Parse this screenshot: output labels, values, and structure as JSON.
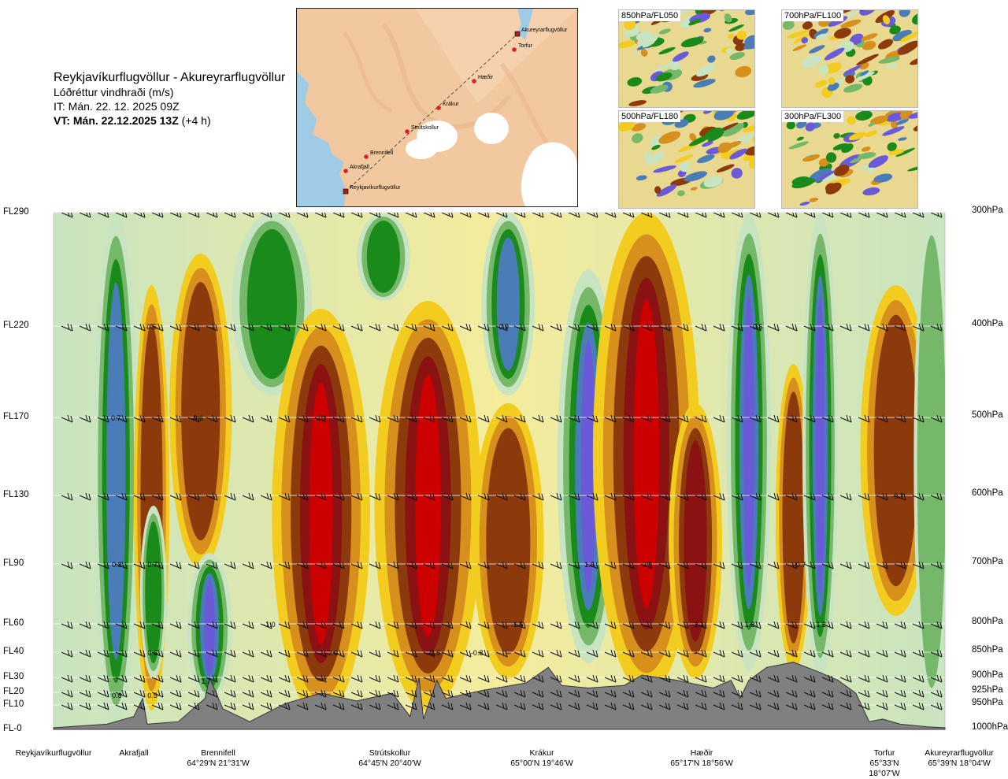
{
  "title": {
    "route": "Reykjavíkurflugvöllur - Akureyrarflugvöllur",
    "variable": "Lóðréttur vindhraði (m/s)",
    "init_time": "IT: Mán. 22. 12. 2025 09Z",
    "valid_time": "VT: Mán. 22.12.2025 13Z",
    "lead": "(+4 h)"
  },
  "map": {
    "stations": [
      "Akureyrarflugvöllur",
      "Torfur",
      "Hæðir",
      "Krákur",
      "Strútskollur",
      "Brennifell",
      "Akrafjall",
      "Reykjavíkurflugvöllur"
    ]
  },
  "thumbnails": [
    "850hPa/FL050",
    "700hPa/FL100",
    "500hPa/FL180",
    "300hPa/FL300"
  ],
  "chart_data": {
    "type": "heatmap",
    "title": "Lóðréttur vindhraði (m/s)",
    "left_axis_levels": [
      "FL290",
      "FL220",
      "FL170",
      "FL130",
      "FL90",
      "FL60",
      "FL40",
      "FL30",
      "FL20",
      "FL10",
      "FL-0"
    ],
    "right_axis_levels": [
      "300hPa",
      "400hPa",
      "500hPa",
      "600hPa",
      "700hPa",
      "800hPa",
      "850hPa",
      "900hPa",
      "925hPa",
      "950hPa",
      "1000hPa"
    ],
    "pressure_hpa": [
      300,
      400,
      500,
      600,
      700,
      800,
      850,
      900,
      925,
      950,
      1000
    ],
    "locations": [
      {
        "name": "Reykjavíkurflugvöllur",
        "coord": ""
      },
      {
        "name": "Akrafjall",
        "coord": ""
      },
      {
        "name": "Brennifell",
        "coord": "64°29'N 21°31'W"
      },
      {
        "name": "Strútskollur",
        "coord": "64°45'N 20°40'W"
      },
      {
        "name": "Krákur",
        "coord": "65°00'N 19°46'W"
      },
      {
        "name": "Hæðir",
        "coord": "65°17'N 18°56'W"
      },
      {
        "name": "Torfur",
        "coord": "65°33'N 18°07'W"
      },
      {
        "name": "Akureyrarflugvöllur",
        "coord": "65°39'N 18°04'W"
      }
    ],
    "contour_labels": [
      {
        "text": "0.5",
        "x": 0.11,
        "level_hpa": 400
      },
      {
        "text": "0.9",
        "x": 0.505,
        "level_hpa": 400
      },
      {
        "text": "0.5",
        "x": 0.79,
        "level_hpa": 400
      },
      {
        "text": "0.7",
        "x": 0.07,
        "level_hpa": 500
      },
      {
        "text": "-0.6",
        "x": 0.161,
        "level_hpa": 500
      },
      {
        "text": "-2.3",
        "x": 0.299,
        "level_hpa": 500
      },
      {
        "text": "-0.7",
        "x": 0.947,
        "level_hpa": 600
      },
      {
        "text": "0.8",
        "x": 0.071,
        "level_hpa": 700
      },
      {
        "text": "0.7",
        "x": 0.111,
        "level_hpa": 700
      },
      {
        "text": "1.6",
        "x": 0.601,
        "level_hpa": 700
      },
      {
        "text": "-3.5",
        "x": 0.665,
        "level_hpa": 700
      },
      {
        "text": "-0.7",
        "x": 0.837,
        "level_hpa": 700
      },
      {
        "text": "-1.0",
        "x": 0.242,
        "level_hpa": 800
      },
      {
        "text": "-1.5",
        "x": 0.52,
        "level_hpa": 800
      },
      {
        "text": "-2.1",
        "x": 0.723,
        "level_hpa": 800
      },
      {
        "text": "1.8",
        "x": 0.781,
        "level_hpa": 800
      },
      {
        "text": "1.2",
        "x": 0.861,
        "level_hpa": 800
      },
      {
        "text": "0.6",
        "x": 0.111,
        "level_hpa": 850
      },
      {
        "text": "-2.0",
        "x": 0.312,
        "level_hpa": 850
      },
      {
        "text": "-1.6",
        "x": 0.427,
        "level_hpa": 850
      },
      {
        "text": "-0.8",
        "x": 0.475,
        "level_hpa": 850
      },
      {
        "text": "1.7",
        "x": 0.171,
        "level_hpa": 905
      },
      {
        "text": "0.8",
        "x": 0.071,
        "level_hpa": 930
      },
      {
        "text": "0.5",
        "x": 0.111,
        "level_hpa": 930
      }
    ]
  },
  "colors": {
    "strong_down": "#cc0000",
    "down": "#8a1212",
    "weak_down": "#8c3a0c",
    "slight_down": "#d8901c",
    "neutral_warm": "#f2cc1e",
    "neutral_pale": "#f5ec9c",
    "slight_up": "#c8e4c0",
    "weak_up": "#75b86a",
    "up": "#1a8a1a",
    "strong_up": "#4a7db8",
    "very_strong_up": "#6a5ad8",
    "terrain": "#808080",
    "land": "#f2c8a0",
    "sea": "#9fcbe6"
  }
}
